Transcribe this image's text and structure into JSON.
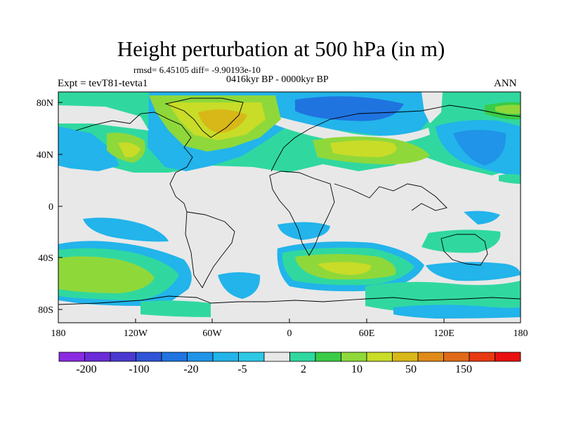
{
  "title": "Height perturbation at 500 hPa (in m)",
  "stats": "rmsd= 6.45105 diff= -9.90193e-10",
  "period": "0416kyr BP - 0000kyr BP",
  "expt": "Expt = tevT81-tevta1",
  "season": "ANN",
  "lat_labels": [
    "80N",
    "40N",
    "0",
    "40S",
    "80S"
  ],
  "lon_labels": [
    "180",
    "120W",
    "60W",
    "0",
    "60E",
    "120E",
    "180"
  ],
  "colorbar": {
    "labels": [
      "-200",
      "-100",
      "-20",
      "-5",
      "2",
      "10",
      "50",
      "150"
    ],
    "colors": [
      "#8a2be2",
      "#6a2cd8",
      "#4b3ad0",
      "#2f54d8",
      "#1f74e0",
      "#1f94e8",
      "#22b4ea",
      "#2ec8e6",
      "#e8e8e8",
      "#30d8a0",
      "#3acb48",
      "#8fd83a",
      "#c8dc28",
      "#d8b818",
      "#e08a18",
      "#e06a18",
      "#e83a10",
      "#e81010"
    ]
  },
  "palette": {
    "neutral": "#e8e8e8",
    "teal": "#2ec8e6",
    "cyan": "#22b4ea",
    "blue": "#1f94e8",
    "blue2": "#1f74e0",
    "blue3": "#2f54d8",
    "green": "#30d8a0",
    "green2": "#3acb48",
    "lime": "#8fd83a",
    "yellow": "#c8dc28",
    "gold": "#d8b818"
  }
}
